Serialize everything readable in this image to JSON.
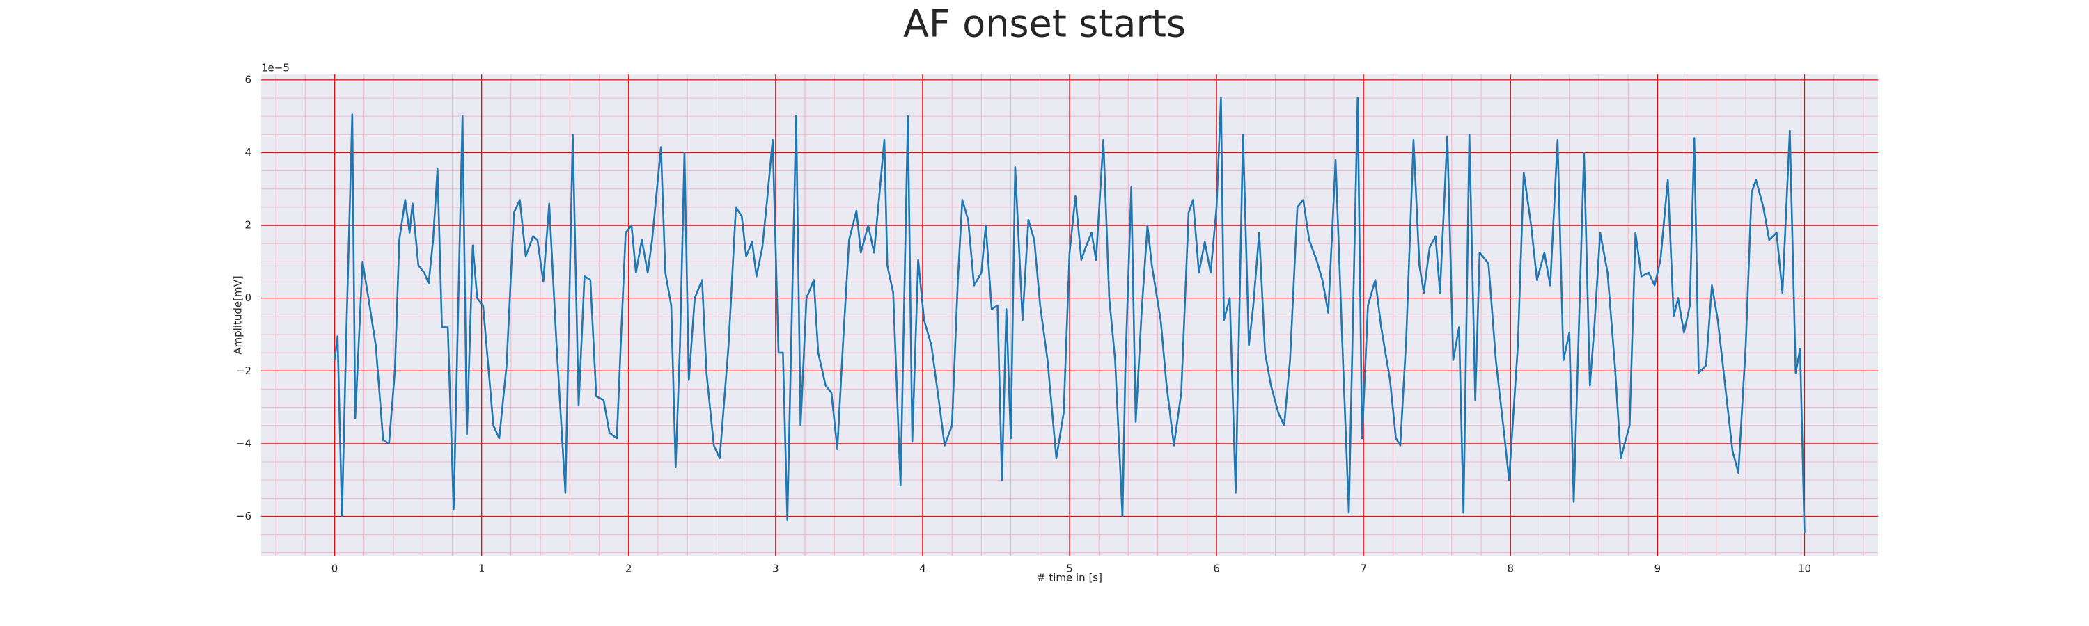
{
  "chart_data": {
    "type": "line",
    "title": "AF onset starts",
    "xlabel": "# time in [s]",
    "ylabel": "Amplitude[mV]",
    "y_offset_label": "1e−5",
    "x": [
      0,
      0.02,
      0.05,
      0.08,
      0.12,
      0.14,
      0.19,
      0.23,
      0.28,
      0.33,
      0.37,
      0.41,
      0.44,
      0.48,
      0.51,
      0.53,
      0.57,
      0.61,
      0.64,
      0.67,
      0.7,
      0.73,
      0.77,
      0.81,
      0.87,
      0.9,
      0.94,
      0.97,
      1.01,
      1.08,
      1.12,
      1.17,
      1.22,
      1.26,
      1.3,
      1.35,
      1.38,
      1.42,
      1.46,
      1.51,
      1.57,
      1.62,
      1.66,
      1.7,
      1.74,
      1.78,
      1.83,
      1.87,
      1.92,
      1.95,
      1.98,
      2.02,
      2.05,
      2.09,
      2.13,
      2.16,
      2.22,
      2.25,
      2.29,
      2.32,
      2.35,
      2.38,
      2.41,
      2.45,
      2.5,
      2.53,
      2.58,
      2.62,
      2.68,
      2.73,
      2.77,
      2.8,
      2.84,
      2.87,
      2.91,
      2.94,
      2.98,
      3.02,
      3.05,
      3.08,
      3.14,
      3.17,
      3.21,
      3.26,
      3.29,
      3.34,
      3.38,
      3.42,
      3.46,
      3.5,
      3.55,
      3.58,
      3.63,
      3.67,
      3.74,
      3.76,
      3.8,
      3.85,
      3.9,
      3.93,
      3.97,
      4.01,
      4.06,
      4.11,
      4.15,
      4.2,
      4.24,
      4.27,
      4.31,
      4.35,
      4.4,
      4.43,
      4.47,
      4.51,
      4.54,
      4.57,
      4.6,
      4.63,
      4.68,
      4.72,
      4.76,
      4.8,
      4.85,
      4.91,
      4.96,
      5.0,
      5.04,
      5.08,
      5.11,
      5.15,
      5.18,
      5.23,
      5.27,
      5.31,
      5.36,
      5.38,
      5.42,
      5.45,
      5.49,
      5.53,
      5.56,
      5.62,
      5.66,
      5.71,
      5.76,
      5.81,
      5.84,
      5.88,
      5.92,
      5.96,
      6.0,
      6.03,
      6.05,
      6.09,
      6.13,
      6.18,
      6.22,
      6.25,
      6.29,
      6.33,
      6.37,
      6.42,
      6.46,
      6.5,
      6.55,
      6.59,
      6.63,
      6.68,
      6.72,
      6.76,
      6.81,
      6.86,
      6.9,
      6.96,
      6.99,
      7.03,
      7.08,
      7.12,
      7.18,
      7.22,
      7.25,
      7.29,
      7.34,
      7.38,
      7.41,
      7.45,
      7.49,
      7.52,
      7.57,
      7.61,
      7.65,
      7.68,
      7.72,
      7.76,
      7.79,
      7.85,
      7.9,
      7.96,
      7.99,
      8.05,
      8.09,
      8.14,
      8.18,
      8.23,
      8.27,
      8.32,
      8.36,
      8.4,
      8.43,
      8.5,
      8.54,
      8.57,
      8.61,
      8.66,
      8.71,
      8.75,
      8.81,
      8.85,
      8.89,
      8.94,
      8.98,
      9.02,
      9.07,
      9.11,
      9.14,
      9.18,
      9.22,
      9.25,
      9.28,
      9.33,
      9.37,
      9.41,
      9.46,
      9.51,
      9.55,
      9.6,
      9.64,
      9.67,
      9.72,
      9.76,
      9.81,
      9.85,
      9.9,
      9.94,
      9.97,
      10.0
    ],
    "series": [
      {
        "color": "#1f77b4",
        "values": [
          -1.7,
          -1.05,
          -6.0,
          -0.9,
          5.05,
          -3.3,
          1.0,
          0,
          -1.3,
          -3.9,
          -4.0,
          -2.0,
          1.6,
          2.7,
          1.8,
          2.6,
          0.9,
          0.7,
          0.4,
          1.6,
          3.55,
          -0.8,
          -0.8,
          -5.8,
          5.0,
          -3.75,
          1.45,
          0,
          -0.2,
          -3.5,
          -3.85,
          -1.85,
          2.35,
          2.7,
          1.15,
          1.7,
          1.6,
          0.45,
          2.6,
          -1.3,
          -5.35,
          4.5,
          -2.95,
          0.6,
          0.5,
          -2.7,
          -2.8,
          -3.7,
          -3.85,
          -0.95,
          1.8,
          2.0,
          0.7,
          1.6,
          0.7,
          1.6,
          4.15,
          0.7,
          -0.2,
          -4.65,
          -1.25,
          4.0,
          -2.25,
          0,
          0.5,
          -2.05,
          -4.05,
          -4.4,
          -1.3,
          2.5,
          2.25,
          1.15,
          1.55,
          0.6,
          1.4,
          2.6,
          4.35,
          -1.5,
          -1.5,
          -6.1,
          5.0,
          -3.5,
          0,
          0.5,
          -1.5,
          -2.4,
          -2.6,
          -4.15,
          -1.15,
          1.6,
          2.4,
          1.25,
          2.0,
          1.25,
          4.35,
          0.9,
          0.15,
          -5.15,
          5.0,
          -3.95,
          1.05,
          -0.6,
          -1.3,
          -2.8,
          -4.05,
          -3.5,
          0.5,
          2.7,
          2.15,
          0.35,
          0.7,
          2.0,
          -0.3,
          -0.2,
          -5.0,
          -0.3,
          -3.85,
          3.6,
          -0.6,
          2.15,
          1.6,
          -0.2,
          -1.7,
          -4.4,
          -3.15,
          1.25,
          2.8,
          1.05,
          1.4,
          1.8,
          1.05,
          4.35,
          0,
          -1.7,
          -6.0,
          -1.85,
          3.05,
          -3.4,
          -0.4,
          2.0,
          0.9,
          -0.6,
          -2.4,
          -4.05,
          -2.6,
          2.35,
          2.7,
          0.7,
          1.55,
          0.7,
          2.5,
          5.5,
          -0.6,
          0,
          -5.35,
          4.5,
          -1.3,
          -0.2,
          1.8,
          -1.5,
          -2.4,
          -3.15,
          -3.5,
          -1.7,
          2.5,
          2.7,
          1.6,
          1.05,
          0.5,
          -0.4,
          3.8,
          -1.7,
          -5.9,
          5.5,
          -3.85,
          -0.2,
          0.5,
          -0.8,
          -2.25,
          -3.85,
          -4.05,
          -1.15,
          4.35,
          0.9,
          0.15,
          1.4,
          1.7,
          0.15,
          4.45,
          -1.7,
          -0.8,
          -5.9,
          4.5,
          -2.8,
          1.25,
          0.95,
          -1.7,
          -3.85,
          -5.0,
          -1.3,
          3.45,
          2.0,
          0.5,
          1.25,
          0.35,
          4.35,
          -1.7,
          -0.95,
          -5.6,
          4.0,
          -2.4,
          -0.8,
          1.8,
          0.7,
          -1.85,
          -4.4,
          -3.5,
          1.8,
          0.6,
          0.7,
          0.35,
          1.05,
          3.25,
          -0.5,
          0,
          -0.95,
          -0.2,
          4.4,
          -2.05,
          -1.85,
          0.35,
          -0.6,
          -2.4,
          -4.2,
          -4.8,
          -1.3,
          2.9,
          3.25,
          2.5,
          1.6,
          1.8,
          0.15,
          4.6,
          -2.05,
          -1.4,
          -6.45
        ]
      }
    ],
    "xlim": [
      -0.5,
      10.5
    ],
    "ylim": [
      -7.1,
      6.15
    ],
    "xticks": [
      0,
      1,
      2,
      3,
      4,
      5,
      6,
      7,
      8,
      9,
      10
    ],
    "yticks": [
      {
        "value": -6,
        "label": "−6"
      },
      {
        "value": -4,
        "label": "−4"
      },
      {
        "value": -2,
        "label": "−2"
      },
      0,
      2,
      4,
      6
    ],
    "xticks_minor": [
      -0.4,
      -0.2,
      0.2,
      0.4,
      0.6,
      0.8,
      1.2,
      1.4,
      1.6,
      1.8,
      2.2,
      2.4,
      2.6,
      2.8,
      3.2,
      3.4,
      3.6,
      3.8,
      4.2,
      4.4,
      4.6,
      4.8,
      5.2,
      5.4,
      5.6,
      5.8,
      6.2,
      6.4,
      6.6,
      6.8,
      7.2,
      7.4,
      7.6,
      7.8,
      8.2,
      8.4,
      8.6,
      8.8,
      9.2,
      9.4,
      9.6,
      9.8,
      10.2,
      10.4
    ],
    "yticks_minor": [
      -7,
      -6.5,
      -5.5,
      -5,
      -4.5,
      -3.5,
      -3,
      -2.5,
      -1.5,
      -1,
      -0.5,
      0.5,
      1,
      1.5,
      2.5,
      3,
      3.5,
      4.5,
      5,
      5.5
    ],
    "grid": true,
    "minor_grid": true,
    "grid_color": "#ff0000",
    "minor_grid_color": "#f4b6c8",
    "plot_background": "#eaeaf2"
  }
}
